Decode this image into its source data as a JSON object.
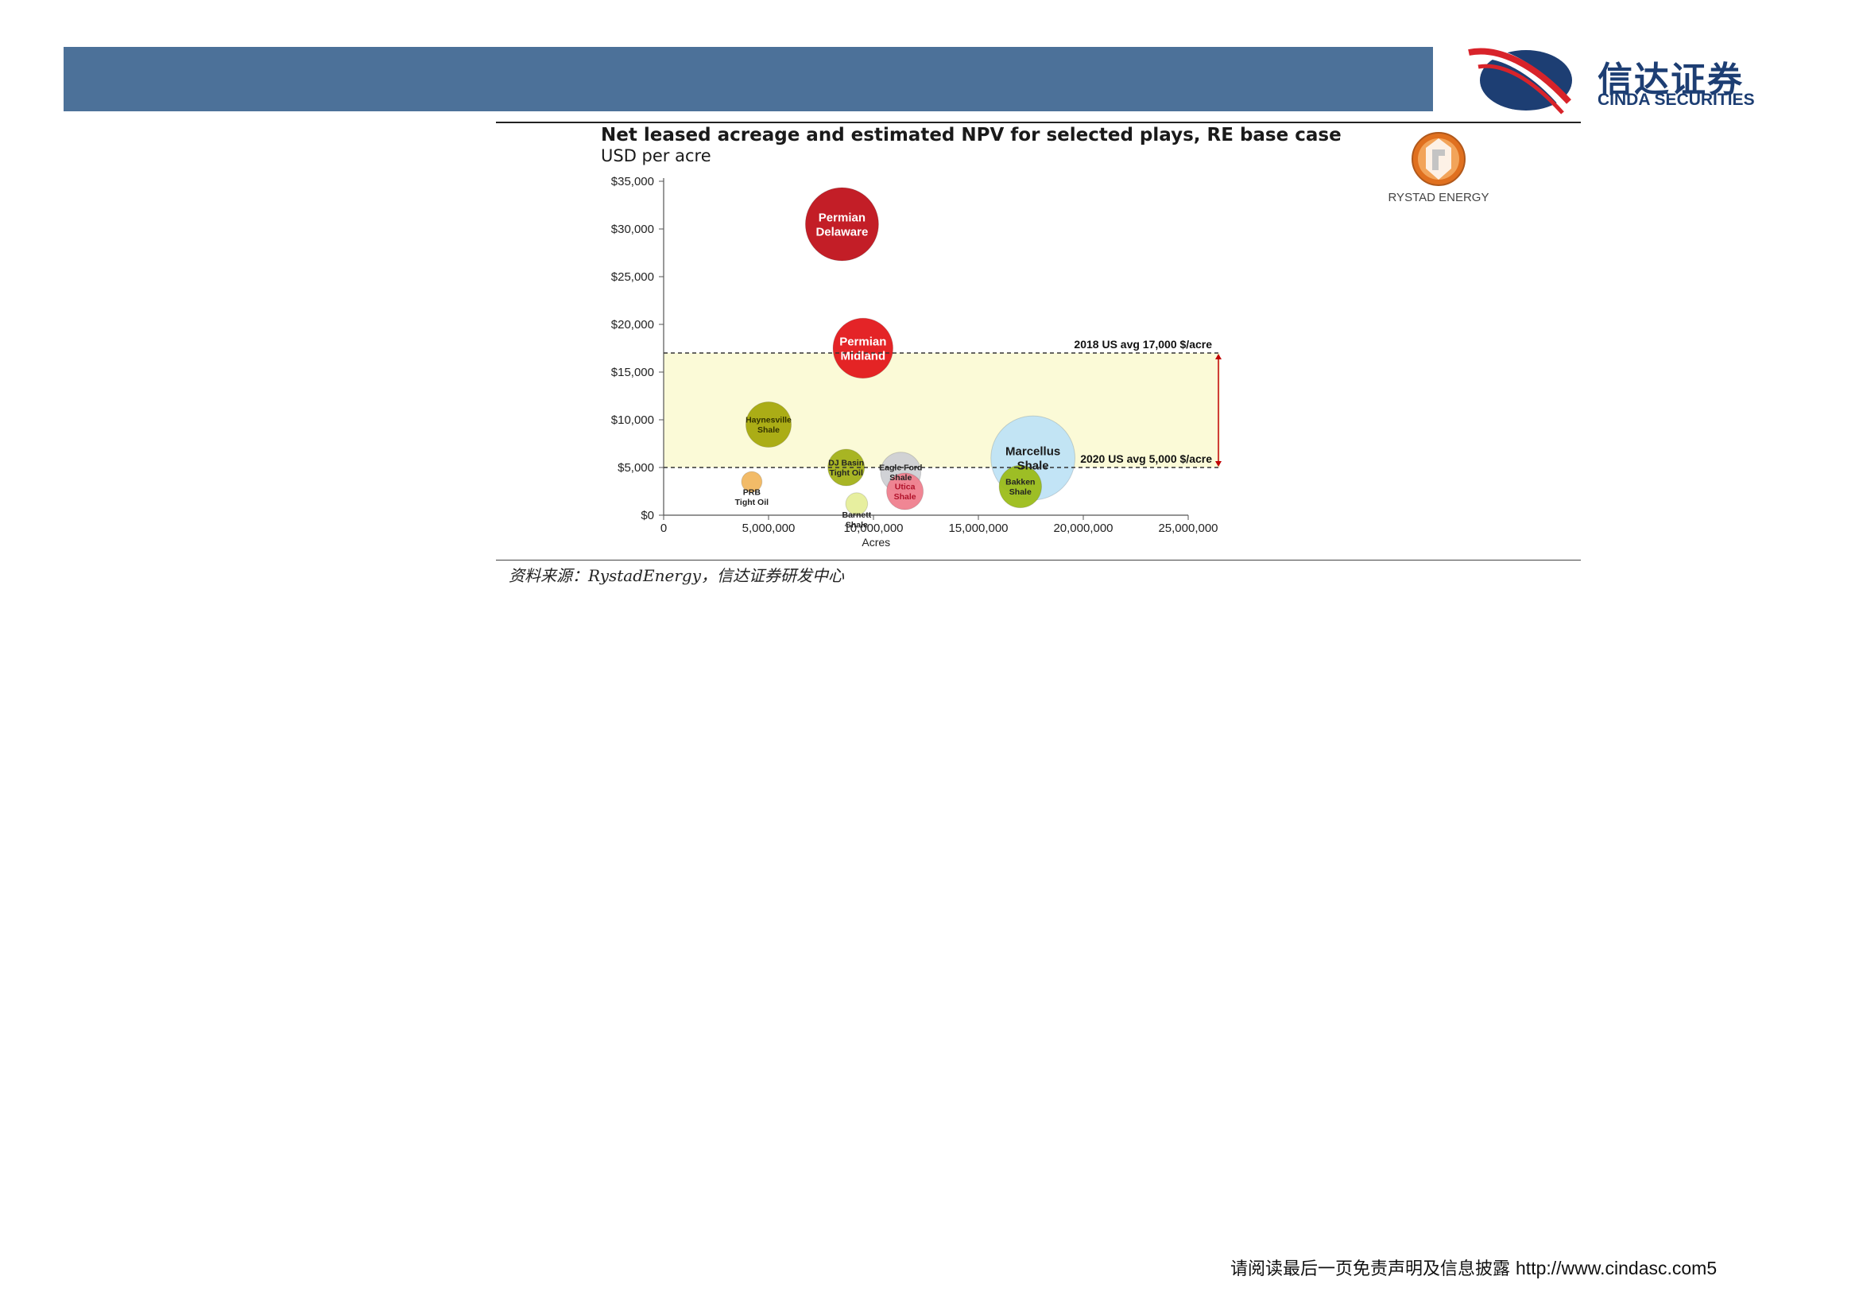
{
  "header": {
    "logo_cn": "信达证券",
    "logo_en": "CINDA SECURITIES",
    "banner_color": "#4c7199",
    "brand_color": "#1d3e73"
  },
  "figure": {
    "rystad_label": "RYSTAD ENERGY",
    "source_note": "资料来源：RystadEnergy，信达证券研发中心"
  },
  "footer": {
    "disclaimer": "请阅读最后一页免责声明及信息披露",
    "url": "http://www.cindasc.com",
    "page_number": "5"
  },
  "chart_data": {
    "type": "scatter",
    "title": "Net leased acreage and estimated NPV for selected plays, RE base case",
    "subtitle": "USD per acre",
    "xlabel": "Acres",
    "ylabel": "",
    "xlim": [
      0,
      25000000
    ],
    "ylim": [
      0,
      35000
    ],
    "x_ticks": [
      "0",
      "5,000,000",
      "10,000,000",
      "15,000,000",
      "20,000,000",
      "25,000,000"
    ],
    "y_ticks": [
      "$0",
      "$5,000",
      "$10,000",
      "$15,000",
      "$20,000",
      "$25,000",
      "$30,000",
      "$35,000"
    ],
    "grid": false,
    "band": {
      "y_from": 5000,
      "y_to": 17000,
      "color": "#fbfad7"
    },
    "reference_lines": [
      {
        "y": 17000,
        "label": "2018 US avg 17,000 $/acre"
      },
      {
        "y": 5000,
        "label": "2020 US avg 5,000 $/acre"
      }
    ],
    "points": [
      {
        "name": "Permian Delaware",
        "label_lines": [
          "Permian",
          "Delaware"
        ],
        "x": 8500000,
        "y": 30500,
        "size": 1.0,
        "color": "#c0131c",
        "label_color": "#ffffff"
      },
      {
        "name": "Permian Midland",
        "label_lines": [
          "Permian",
          "Midland"
        ],
        "x": 9500000,
        "y": 17500,
        "size": 0.82,
        "color": "#e3191c",
        "label_color": "#ffffff"
      },
      {
        "name": "Haynesville Shale",
        "label_lines": [
          "Haynesville",
          "Shale"
        ],
        "x": 5000000,
        "y": 9500,
        "size": 0.62,
        "color": "#a7a90c",
        "label_color": "#333300"
      },
      {
        "name": "PRB Tight Oil",
        "label_lines": [
          "PRB",
          "Tight Oil"
        ],
        "x": 4200000,
        "y": 3500,
        "size": 0.28,
        "color": "#f2b860",
        "label_color": "#222222"
      },
      {
        "name": "DJ Basin Tight Oil",
        "label_lines": [
          "DJ Basin",
          "Tight Oil"
        ],
        "x": 8700000,
        "y": 5000,
        "size": 0.5,
        "color": "#a4b21a",
        "label_color": "#222222"
      },
      {
        "name": "Eagle Ford Shale",
        "label_lines": [
          "Eagle Ford",
          "Shale"
        ],
        "x": 11300000,
        "y": 4500,
        "size": 0.55,
        "color": "#cfd0d4",
        "label_color": "#222222"
      },
      {
        "name": "Utica Shale",
        "label_lines": [
          "Utica",
          "Shale"
        ],
        "x": 11500000,
        "y": 2500,
        "size": 0.5,
        "color": "#f0808f",
        "label_color": "#b1122a"
      },
      {
        "name": "Barnett Shale",
        "label_lines": [
          "Barnett",
          "Shale"
        ],
        "x": 9200000,
        "y": 1200,
        "size": 0.3,
        "color": "#e6ef9a",
        "label_color": "#222222"
      },
      {
        "name": "Bakken Shale",
        "label_lines": [
          "Bakken",
          "Shale"
        ],
        "x": 17000000,
        "y": 3000,
        "size": 0.58,
        "color": "#9cbd1a",
        "label_color": "#222222"
      },
      {
        "name": "Marcellus Shale",
        "label_lines": [
          "Marcellus",
          "Shale"
        ],
        "x": 17600000,
        "y": 6000,
        "size": 1.15,
        "color": "#bfe3f6",
        "label_color": "#1a1a1a"
      }
    ]
  }
}
